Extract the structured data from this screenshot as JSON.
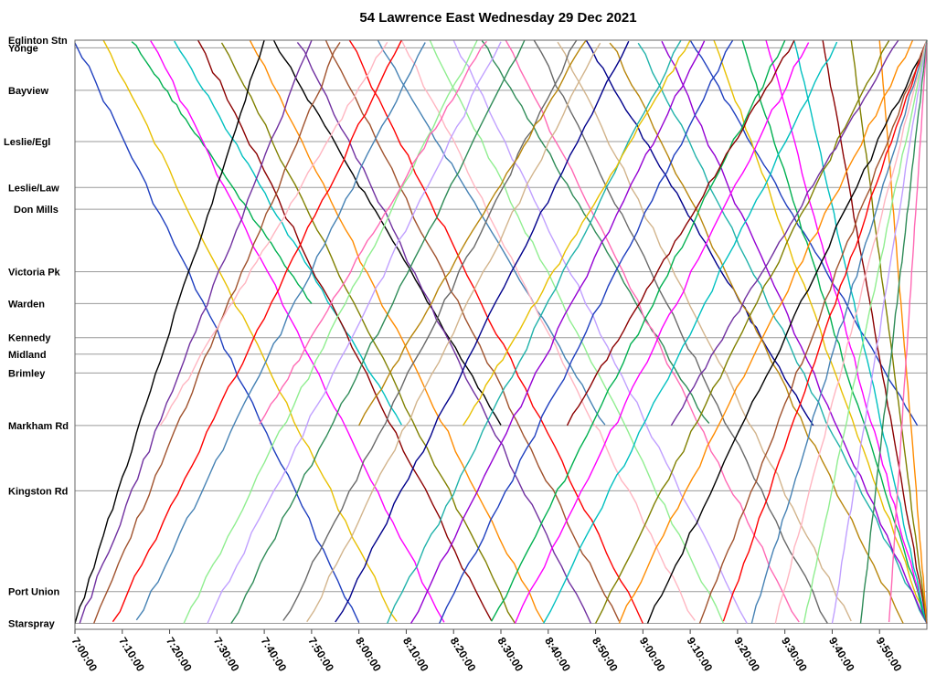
{
  "chart_data": {
    "type": "line",
    "title": "54 Lawrence East Wednesday 29 Dec 2021",
    "xlabel": "",
    "ylabel": "",
    "x_range_minutes": [
      420,
      600
    ],
    "x_ticks": [
      "7:00:00",
      "7:10:00",
      "7:20:00",
      "7:30:00",
      "7:40:00",
      "7:50:00",
      "8:00:00",
      "8:10:00",
      "8:20:00",
      "8:30:00",
      "8:40:00",
      "8:50:00",
      "9:00:00",
      "9:10:00",
      "9:20:00",
      "9:30:00",
      "9:40:00",
      "9:50:00"
    ],
    "y_stops": [
      {
        "name": "Eglinton Stn",
        "pos": 0.0
      },
      {
        "name": "Yonge",
        "pos": 0.013
      },
      {
        "name": "Bayview",
        "pos": 0.085
      },
      {
        "name": "Leslie/Egl",
        "pos": 0.172
      },
      {
        "name": "Leslie/Law",
        "pos": 0.25
      },
      {
        "name": "Don Mills",
        "pos": 0.287
      },
      {
        "name": "Victoria Pk",
        "pos": 0.393
      },
      {
        "name": "Warden",
        "pos": 0.447
      },
      {
        "name": "Kennedy",
        "pos": 0.505
      },
      {
        "name": "Midland",
        "pos": 0.533
      },
      {
        "name": "Brimley",
        "pos": 0.565
      },
      {
        "name": "Markham Rd",
        "pos": 0.654
      },
      {
        "name": "Kingston Rd",
        "pos": 0.765
      },
      {
        "name": "Port Union",
        "pos": 0.936
      },
      {
        "name": "Starspray",
        "pos": 0.99
      }
    ],
    "grid": true,
    "legend": "none",
    "note_series_colors": [
      "#1f3fbf",
      "#e8c000",
      "#00b050",
      "#ff00ff",
      "#00c0c0",
      "#8b0000",
      "#808000",
      "#ff8c00",
      "#000000",
      "#7030a0",
      "#a0522d",
      "#ff0000",
      "#4682b4",
      "#ffb6c1",
      "#90ee90",
      "#c0a0ff",
      "#2e8b57",
      "#ff69b4",
      "#696969",
      "#d2b48c",
      "#00008b",
      "#b8860b",
      "#20b2aa",
      "#9400d3"
    ],
    "trips": [
      {
        "dir": "east",
        "start": 420,
        "end": 480,
        "pattern": "local"
      },
      {
        "dir": "east",
        "start": 426,
        "end": 488,
        "pattern": "local"
      },
      {
        "dir": "east",
        "start": 432,
        "end": 470,
        "pattern": "short-Kennedy"
      },
      {
        "dir": "east",
        "start": 436,
        "end": 498,
        "pattern": "local"
      },
      {
        "dir": "east",
        "start": 441,
        "end": 489,
        "pattern": "short-Markham"
      },
      {
        "dir": "east",
        "start": 446,
        "end": 508,
        "pattern": "local"
      },
      {
        "dir": "east",
        "start": 451,
        "end": 513,
        "pattern": "local"
      },
      {
        "dir": "east",
        "start": 457,
        "end": 519,
        "pattern": "local"
      },
      {
        "dir": "east",
        "start": 462,
        "end": 510,
        "pattern": "short-Markham"
      },
      {
        "dir": "east",
        "start": 467,
        "end": 529,
        "pattern": "local"
      },
      {
        "dir": "east",
        "start": 473,
        "end": 535,
        "pattern": "local"
      },
      {
        "dir": "east",
        "start": 478,
        "end": 540,
        "pattern": "local"
      },
      {
        "dir": "east",
        "start": 484,
        "end": 532,
        "pattern": "short-Markham"
      },
      {
        "dir": "east",
        "start": 489,
        "end": 551,
        "pattern": "local"
      },
      {
        "dir": "east",
        "start": 495,
        "end": 557,
        "pattern": "local"
      },
      {
        "dir": "east",
        "start": 500,
        "end": 562,
        "pattern": "local"
      },
      {
        "dir": "east",
        "start": 506,
        "end": 554,
        "pattern": "short-Markham"
      },
      {
        "dir": "east",
        "start": 511,
        "end": 573,
        "pattern": "local"
      },
      {
        "dir": "east",
        "start": 517,
        "end": 579,
        "pattern": "local"
      },
      {
        "dir": "east",
        "start": 522,
        "end": 584,
        "pattern": "local"
      },
      {
        "dir": "east",
        "start": 528,
        "end": 576,
        "pattern": "short-Markham"
      },
      {
        "dir": "east",
        "start": 533,
        "end": 595,
        "pattern": "local"
      },
      {
        "dir": "east",
        "start": 539,
        "end": 600,
        "pattern": "local"
      },
      {
        "dir": "east",
        "start": 544,
        "end": 600,
        "pattern": "local"
      },
      {
        "dir": "east",
        "start": 550,
        "end": 598,
        "pattern": "short-Markham"
      },
      {
        "dir": "east",
        "start": 555,
        "end": 600,
        "pattern": "local"
      },
      {
        "dir": "east",
        "start": 561,
        "end": 600,
        "pattern": "local"
      },
      {
        "dir": "east",
        "start": 566,
        "end": 600,
        "pattern": "local"
      },
      {
        "dir": "east",
        "start": 572,
        "end": 600,
        "pattern": "local"
      },
      {
        "dir": "east",
        "start": 578,
        "end": 600,
        "pattern": "local"
      },
      {
        "dir": "east",
        "start": 584,
        "end": 600,
        "pattern": "local"
      },
      {
        "dir": "east",
        "start": 590,
        "end": 600,
        "pattern": "local"
      },
      {
        "dir": "west",
        "start": 420,
        "end": 460,
        "pattern": "local"
      },
      {
        "dir": "west",
        "start": 421,
        "end": 470,
        "pattern": "local"
      },
      {
        "dir": "west",
        "start": 424,
        "end": 476,
        "pattern": "local"
      },
      {
        "dir": "west",
        "start": 428,
        "end": 489,
        "pattern": "local"
      },
      {
        "dir": "west",
        "start": 433,
        "end": 494,
        "pattern": "local"
      },
      {
        "dir": "west",
        "start": 438,
        "end": 486,
        "pattern": "short-Markham"
      },
      {
        "dir": "west",
        "start": 443,
        "end": 505,
        "pattern": "local"
      },
      {
        "dir": "west",
        "start": 448,
        "end": 510,
        "pattern": "local"
      },
      {
        "dir": "west",
        "start": 453,
        "end": 515,
        "pattern": "local"
      },
      {
        "dir": "west",
        "start": 459,
        "end": 507,
        "pattern": "short-Markham"
      },
      {
        "dir": "west",
        "start": 464,
        "end": 526,
        "pattern": "local"
      },
      {
        "dir": "west",
        "start": 469,
        "end": 531,
        "pattern": "local"
      },
      {
        "dir": "west",
        "start": 475,
        "end": 537,
        "pattern": "local"
      },
      {
        "dir": "west",
        "start": 480,
        "end": 528,
        "pattern": "short-Markham"
      },
      {
        "dir": "west",
        "start": 486,
        "end": 548,
        "pattern": "local"
      },
      {
        "dir": "west",
        "start": 491,
        "end": 553,
        "pattern": "local"
      },
      {
        "dir": "west",
        "start": 497,
        "end": 559,
        "pattern": "local"
      },
      {
        "dir": "west",
        "start": 502,
        "end": 550,
        "pattern": "short-Markham"
      },
      {
        "dir": "west",
        "start": 508,
        "end": 570,
        "pattern": "local"
      },
      {
        "dir": "west",
        "start": 513,
        "end": 575,
        "pattern": "local"
      },
      {
        "dir": "west",
        "start": 519,
        "end": 581,
        "pattern": "local"
      },
      {
        "dir": "west",
        "start": 524,
        "end": 572,
        "pattern": "short-Markham"
      },
      {
        "dir": "west",
        "start": 530,
        "end": 592,
        "pattern": "local"
      },
      {
        "dir": "west",
        "start": 535,
        "end": 597,
        "pattern": "local"
      },
      {
        "dir": "west",
        "start": 541,
        "end": 600,
        "pattern": "local"
      },
      {
        "dir": "west",
        "start": 546,
        "end": 594,
        "pattern": "short-Markham"
      },
      {
        "dir": "west",
        "start": 552,
        "end": 600,
        "pattern": "local"
      },
      {
        "dir": "west",
        "start": 557,
        "end": 600,
        "pattern": "local"
      },
      {
        "dir": "west",
        "start": 563,
        "end": 600,
        "pattern": "local"
      },
      {
        "dir": "west",
        "start": 568,
        "end": 600,
        "pattern": "local"
      },
      {
        "dir": "west",
        "start": 574,
        "end": 600,
        "pattern": "local"
      },
      {
        "dir": "west",
        "start": 580,
        "end": 600,
        "pattern": "local"
      },
      {
        "dir": "west",
        "start": 586,
        "end": 600,
        "pattern": "local"
      },
      {
        "dir": "west",
        "start": 592,
        "end": 600,
        "pattern": "local"
      }
    ]
  }
}
